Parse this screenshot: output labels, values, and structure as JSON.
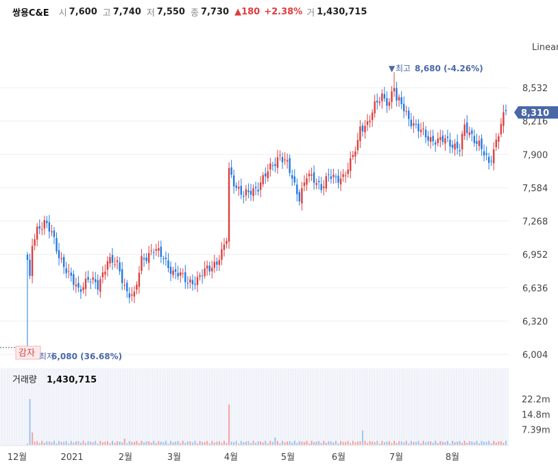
{
  "header": {
    "name": "쌍용C&E",
    "open_label": "시",
    "open": "7,600",
    "high_label": "고",
    "high": "7,740",
    "low_label": "저",
    "low": "7,550",
    "close_label": "종",
    "close": "7,730",
    "change": "180",
    "change_pct": "+2.38%",
    "volume_label": "거",
    "volume": "1,430,715"
  },
  "scale_mode": "Linear",
  "current_price_tag": "8,310",
  "high_annotation": {
    "marker": "▼",
    "label": "최고",
    "value": "8,680 (-4.26%)"
  },
  "low_annotation": {
    "label": "최저",
    "value": "6,080 (36.68%)"
  },
  "event_tag": "감자",
  "volume_panel": {
    "label": "거래량",
    "value": "1,430,715"
  },
  "colors": {
    "up": "#e03c3c",
    "down": "#1e7ae6",
    "accent": "#4a67a8",
    "grid": "#eeeeee"
  },
  "chart_data": {
    "type": "candlestick",
    "price_ticks": [
      "8,532",
      "8,216",
      "7,900",
      "7,584",
      "7,268",
      "6,952",
      "6,636",
      "6,320",
      "6,004"
    ],
    "price_tick_values": [
      8532,
      8216,
      7900,
      7584,
      7268,
      6952,
      6636,
      6320,
      6004
    ],
    "ylim": [
      6004,
      8690
    ],
    "volume_ticks": [
      "22.2m",
      "14.8m",
      "7.39m"
    ],
    "volume_tick_values": [
      22.2,
      14.8,
      7.39
    ],
    "x_ticks": [
      "12월",
      "2021",
      "2월",
      "3월",
      "4월",
      "5월",
      "6월",
      "7월",
      "8월"
    ],
    "close_anchors": [
      [
        0,
        6900
      ],
      [
        1,
        6700
      ],
      [
        2,
        7050
      ],
      [
        4,
        7200
      ],
      [
        7,
        7250
      ],
      [
        10,
        7150
      ],
      [
        13,
        6950
      ],
      [
        17,
        6750
      ],
      [
        21,
        6620
      ],
      [
        25,
        6720
      ],
      [
        29,
        6650
      ],
      [
        33,
        6900
      ],
      [
        37,
        6850
      ],
      [
        41,
        6600
      ],
      [
        44,
        6550
      ],
      [
        47,
        6900
      ],
      [
        52,
        7000
      ],
      [
        56,
        6920
      ],
      [
        60,
        6780
      ],
      [
        63,
        6750
      ],
      [
        66,
        6700
      ],
      [
        70,
        6700
      ],
      [
        74,
        6820
      ],
      [
        78,
        6880
      ],
      [
        80,
        6950
      ],
      [
        82,
        7100
      ],
      [
        83,
        7750
      ],
      [
        86,
        7600
      ],
      [
        89,
        7500
      ],
      [
        92,
        7550
      ],
      [
        95,
        7600
      ],
      [
        98,
        7700
      ],
      [
        101,
        7800
      ],
      [
        104,
        7900
      ],
      [
        107,
        7800
      ],
      [
        110,
        7600
      ],
      [
        112,
        7500
      ],
      [
        115,
        7700
      ],
      [
        118,
        7650
      ],
      [
        121,
        7600
      ],
      [
        124,
        7700
      ],
      [
        127,
        7650
      ],
      [
        130,
        7700
      ],
      [
        133,
        7820
      ],
      [
        136,
        8000
      ],
      [
        137,
        8150
      ],
      [
        140,
        8200
      ],
      [
        143,
        8350
      ],
      [
        146,
        8450
      ],
      [
        149,
        8400
      ],
      [
        151,
        8550
      ],
      [
        152,
        8400
      ],
      [
        154,
        8380
      ],
      [
        157,
        8250
      ],
      [
        160,
        8150
      ],
      [
        163,
        8100
      ],
      [
        166,
        8050
      ],
      [
        169,
        8020
      ],
      [
        172,
        8040
      ],
      [
        175,
        8000
      ],
      [
        178,
        7950
      ],
      [
        180,
        8150
      ],
      [
        183,
        8080
      ],
      [
        186,
        8000
      ],
      [
        188,
        7900
      ],
      [
        190,
        7800
      ],
      [
        192,
        7950
      ],
      [
        195,
        8200
      ],
      [
        197,
        8310
      ]
    ],
    "volume_spikes": [
      [
        1,
        22.2
      ],
      [
        2,
        6.0
      ],
      [
        83,
        19.5
      ],
      [
        138,
        7.0
      ],
      [
        102,
        3.5
      ],
      [
        40,
        3.0
      ]
    ]
  }
}
